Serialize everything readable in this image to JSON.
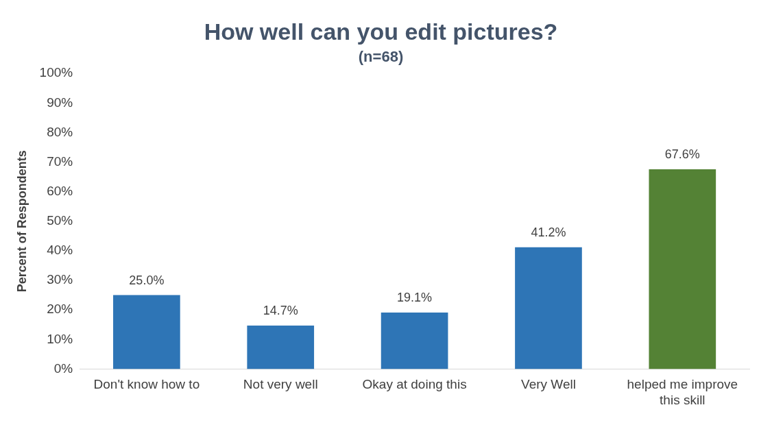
{
  "chart_data": {
    "type": "bar",
    "title": "How well can you edit pictures?",
    "subtitle": "(n=68)",
    "ylabel": "Percent of Respondents",
    "categories": [
      "Don't know how to",
      "Not very well",
      "Okay at doing this",
      "Very Well",
      "helped me improve this skill"
    ],
    "values": [
      25.0,
      14.7,
      19.1,
      41.2,
      67.6
    ],
    "colors": [
      "#2e75b6",
      "#2e75b6",
      "#2e75b6",
      "#2e75b6",
      "#548235"
    ],
    "value_labels": [
      "25.0%",
      "14.7%",
      "19.1%",
      "41.2%",
      "67.6%"
    ],
    "ylim": [
      0,
      100
    ],
    "yticks": [
      {
        "value": 0,
        "label": "0%"
      },
      {
        "value": 10,
        "label": "10%"
      },
      {
        "value": 20,
        "label": "20%"
      },
      {
        "value": 30,
        "label": "30%"
      },
      {
        "value": 40,
        "label": "40%"
      },
      {
        "value": 50,
        "label": "50%"
      },
      {
        "value": 60,
        "label": "60%"
      },
      {
        "value": 70,
        "label": "70%"
      },
      {
        "value": 80,
        "label": "80%"
      },
      {
        "value": 90,
        "label": "90%"
      },
      {
        "value": 100,
        "label": "100%"
      }
    ],
    "grid": false,
    "legend": false
  }
}
